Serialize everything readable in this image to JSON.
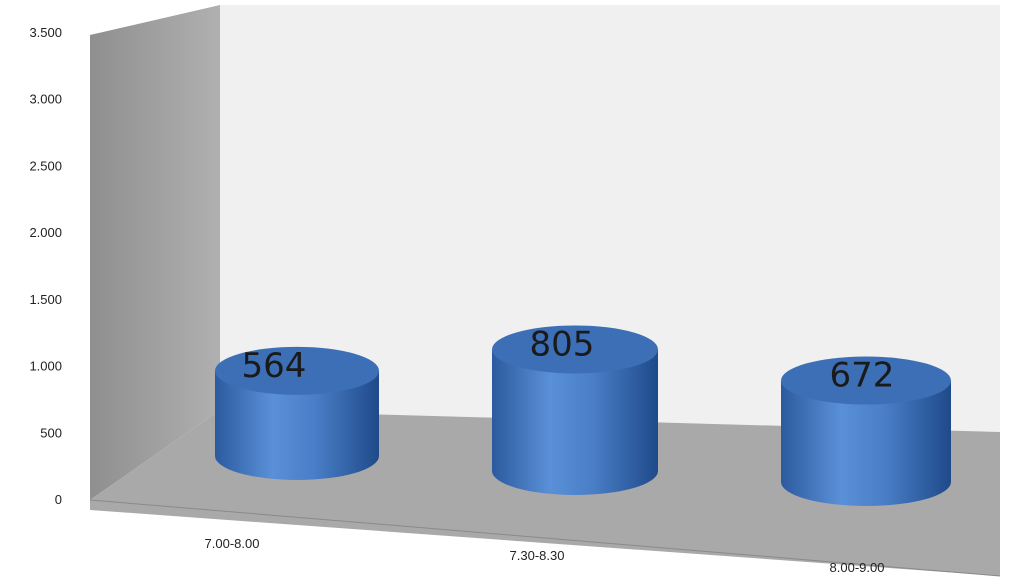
{
  "chart_data": {
    "type": "bar",
    "style": "3d-cylinder",
    "categories": [
      "7.00-8.00",
      "7.30-8.30",
      "8.00-9.00"
    ],
    "values": [
      564,
      805,
      672
    ],
    "data_labels": [
      "564",
      "805",
      "672"
    ],
    "ylim": [
      0,
      3500
    ],
    "yticks": [
      {
        "value": 0,
        "label": "0"
      },
      {
        "value": 500,
        "label": "500"
      },
      {
        "value": 1000,
        "label": "1.000"
      },
      {
        "value": 1500,
        "label": "1.500"
      },
      {
        "value": 2000,
        "label": "2.000"
      },
      {
        "value": 2500,
        "label": "2.500"
      },
      {
        "value": 3000,
        "label": "3.000"
      },
      {
        "value": 3500,
        "label": "3.500"
      }
    ],
    "grid": false,
    "legend": "none",
    "colors": {
      "bar": "#4a7fc8",
      "bar_top": "#3d6fb7",
      "side_wall": "#9d9d9d",
      "back_wall": "#f0f0f0",
      "floor": "#a9a9a9"
    }
  }
}
